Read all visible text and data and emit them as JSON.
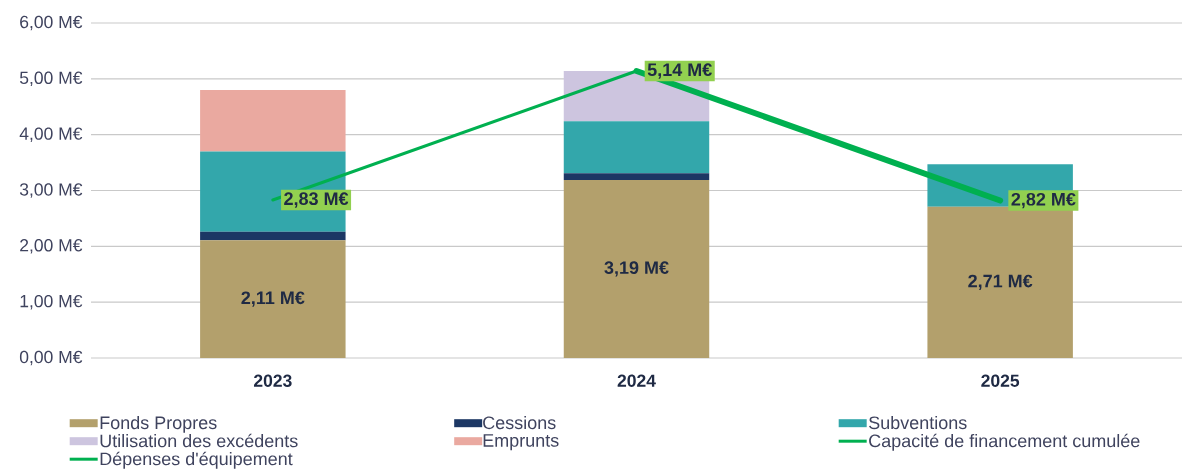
{
  "chart_data": {
    "type": "bar",
    "stacked": true,
    "categories": [
      "2023",
      "2024",
      "2025"
    ],
    "ylim": [
      0,
      6
    ],
    "yticks": [
      {
        "value": 0,
        "label": "0,00 M€"
      },
      {
        "value": 1,
        "label": "1,00 M€"
      },
      {
        "value": 2,
        "label": "2,00 M€"
      },
      {
        "value": 3,
        "label": "3,00 M€"
      },
      {
        "value": 4,
        "label": "4,00 M€"
      },
      {
        "value": 5,
        "label": "5,00 M€"
      },
      {
        "value": 6,
        "label": "6,00 M€"
      }
    ],
    "grid": "y",
    "legend": "bottom",
    "series": [
      {
        "name": "Fonds Propres",
        "color": "#b3a06c",
        "values": [
          2.11,
          3.19,
          2.71
        ],
        "value_labels": [
          "2,11 M€",
          "3,19 M€",
          "2,71 M€"
        ]
      },
      {
        "name": "Cessions",
        "color": "#1c3764",
        "values": [
          0.15,
          0.12,
          0
        ]
      },
      {
        "name": "Subventions",
        "color": "#33a7ab",
        "values": [
          1.44,
          0.93,
          0.76
        ]
      },
      {
        "name": "Utilisation des excédents",
        "color": "#cdc5df",
        "values": [
          0,
          0.9,
          0
        ]
      },
      {
        "name": "Emprunts",
        "color": "#eaa9a0",
        "values": [
          1.1,
          0,
          0
        ]
      },
      {
        "name": "Capacité de financement cumulée",
        "type": "line",
        "color": "#00b050",
        "values": [
          2.83,
          5.14,
          2.82
        ],
        "value_labels": [
          "2,83 M€",
          "5,14 M€",
          "2,82 M€"
        ]
      },
      {
        "name": "Dépenses d'équipement",
        "type": "line",
        "color": "#00b050",
        "values": [
          null,
          5.14,
          2.82
        ]
      }
    ]
  }
}
